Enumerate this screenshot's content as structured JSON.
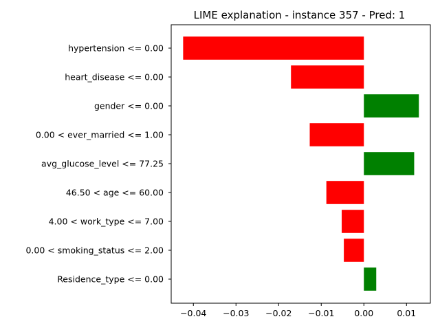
{
  "chart_data": {
    "type": "bar",
    "orientation": "horizontal",
    "title": "LIME explanation - instance 357 - Pred: 1",
    "xlabel": "",
    "ylabel": "",
    "categories": [
      "hypertension <= 0.00",
      "heart_disease <= 0.00",
      "gender <= 0.00",
      "0.00 < ever_married <= 1.00",
      "avg_glucose_level <= 77.25",
      "46.50 < age <= 60.00",
      "4.00 < work_type <= 7.00",
      "0.00 < smoking_status <= 2.00",
      "Residence_type <= 0.00"
    ],
    "values": [
      -0.0424,
      -0.0171,
      0.0129,
      -0.0127,
      0.0118,
      -0.0088,
      -0.0052,
      -0.0047,
      0.0029
    ],
    "xlim": [
      -0.0452,
      0.0156
    ],
    "xticks": [
      -0.04,
      -0.03,
      -0.02,
      -0.01,
      0.0,
      0.01
    ],
    "xtick_labels": [
      "−0.04",
      "−0.03",
      "−0.02",
      "−0.01",
      "0.00",
      "0.01"
    ],
    "grid": false,
    "colors": {
      "positive": "#008000",
      "negative": "#ff0000"
    }
  }
}
